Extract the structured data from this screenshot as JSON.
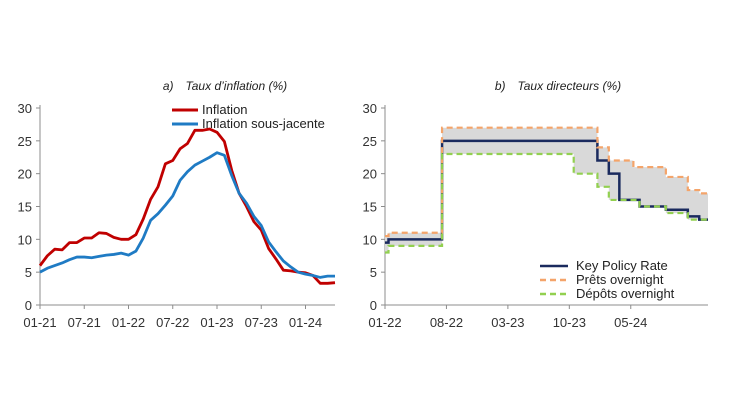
{
  "chart_data": [
    {
      "panel": "a)",
      "type": "line",
      "title": "Taux d’inflation (%)",
      "xlabel": "",
      "ylabel": "",
      "ylim": [
        0,
        30
      ],
      "yticks": [
        0,
        5,
        10,
        15,
        20,
        25,
        30
      ],
      "x_tick_labels": [
        "01-21",
        "07-21",
        "01-22",
        "07-22",
        "01-23",
        "07-23",
        "01-24"
      ],
      "x_start": "2021-01",
      "grid": false,
      "legend_position": "top-right",
      "series": [
        {
          "name": "Inflation",
          "color": "#c00000",
          "values": [
            6.0,
            7.5,
            8.5,
            8.4,
            9.5,
            9.5,
            10.2,
            10.2,
            11.0,
            10.9,
            10.3,
            10.0,
            10.0,
            10.7,
            13.1,
            16.1,
            18.0,
            21.5,
            22.0,
            23.8,
            24.6,
            26.6,
            26.6,
            26.8,
            26.3,
            24.9,
            20.5,
            17.0,
            15.0,
            12.7,
            11.4,
            8.6,
            7.0,
            5.3,
            5.2,
            5.0,
            4.9,
            4.5,
            3.3,
            3.3,
            3.4
          ]
        },
        {
          "name": "Inflation sous-jacente",
          "color": "#1f7bc4",
          "values": [
            5.0,
            5.6,
            6.0,
            6.4,
            6.9,
            7.3,
            7.3,
            7.2,
            7.4,
            7.6,
            7.7,
            7.9,
            7.6,
            8.2,
            10.2,
            12.9,
            13.9,
            15.2,
            16.6,
            19.0,
            20.3,
            21.3,
            21.9,
            22.5,
            23.2,
            22.8,
            19.7,
            17.0,
            15.5,
            13.5,
            12.1,
            9.6,
            8.1,
            6.7,
            5.8,
            5.0,
            4.7,
            4.5,
            4.2,
            4.4,
            4.4
          ]
        }
      ]
    },
    {
      "panel": "b)",
      "type": "line",
      "subtype": "step",
      "title": "Taux directeurs (%)",
      "xlabel": "",
      "ylabel": "",
      "ylim": [
        0,
        30
      ],
      "yticks": [
        0,
        5,
        10,
        15,
        20,
        25,
        30
      ],
      "x_tick_labels": [
        "01-22",
        "08-22",
        "03-23",
        "10-23",
        "05-24"
      ],
      "x_start": "2022-01",
      "grid": false,
      "legend_position": "bottom-right",
      "shaded_corridor": true,
      "series": [
        {
          "name": "Key Policy Rate",
          "color": "#1a2a5e",
          "style": "solid",
          "steps": [
            [
              0,
              9.5
            ],
            [
              0.4,
              10.0
            ],
            [
              6.5,
              25.0
            ],
            [
              24.2,
              22.0
            ],
            [
              25.5,
              20.0
            ],
            [
              26.7,
              16.0
            ],
            [
              29.0,
              15.0
            ],
            [
              32.0,
              14.5
            ],
            [
              34.5,
              13.5
            ],
            [
              35.8,
              13.0
            ]
          ]
        },
        {
          "name": "Prêts overnight",
          "color": "#f4a46a",
          "style": "dashed",
          "steps": [
            [
              0,
              10.5
            ],
            [
              0.4,
              11.0
            ],
            [
              6.5,
              27.0
            ],
            [
              24.2,
              24.0
            ],
            [
              25.5,
              22.0
            ],
            [
              28.3,
              21.0
            ],
            [
              32.0,
              19.5
            ],
            [
              34.5,
              17.5
            ],
            [
              35.8,
              17.0
            ]
          ]
        },
        {
          "name": "Dépôts overnight",
          "color": "#92d050",
          "style": "dashed",
          "steps": [
            [
              0,
              8.0
            ],
            [
              0.4,
              9.0
            ],
            [
              6.5,
              23.0
            ],
            [
              21.5,
              20.0
            ],
            [
              24.2,
              18.0
            ],
            [
              25.5,
              16.0
            ],
            [
              29.0,
              15.0
            ],
            [
              32.0,
              14.0
            ],
            [
              34.5,
              13.0
            ],
            [
              35.8,
              13.0
            ]
          ]
        }
      ]
    }
  ]
}
